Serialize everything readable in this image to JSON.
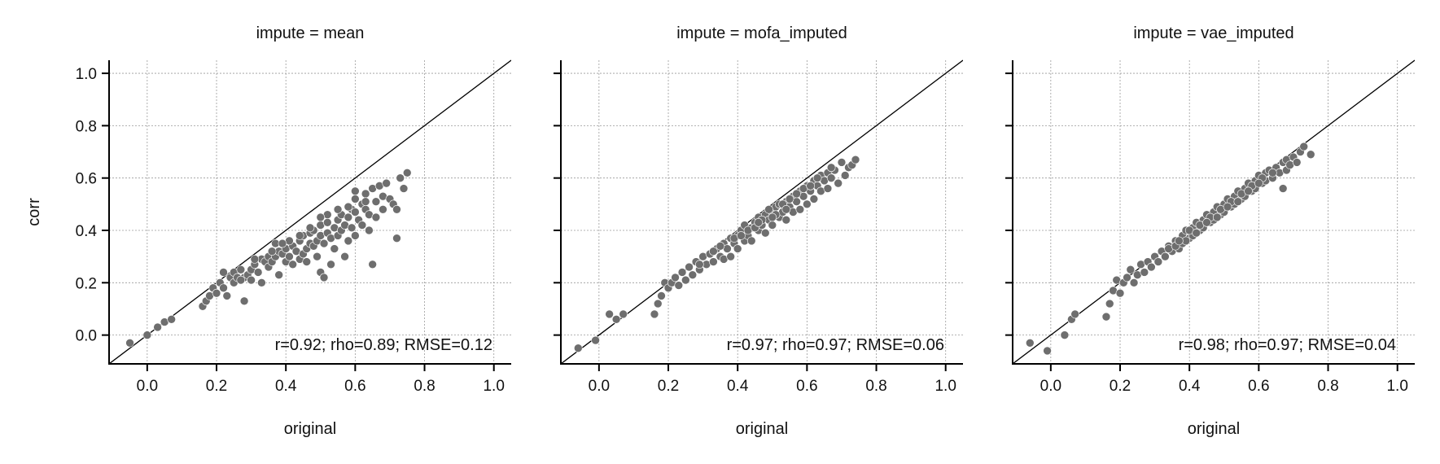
{
  "chart_data": [
    {
      "type": "scatter",
      "title": "impute = mean",
      "xlabel": "original",
      "ylabel": "corr",
      "xlim": [
        -0.11,
        1.05
      ],
      "ylim": [
        -0.11,
        1.05
      ],
      "xticks": [
        0.0,
        0.2,
        0.4,
        0.6,
        0.8,
        1.0
      ],
      "yticks": [
        0.0,
        0.2,
        0.4,
        0.6,
        0.8,
        1.0
      ],
      "grid": true,
      "reference_line": "y = x",
      "annotation": "r=0.92; rho=0.89; RMSE=0.12",
      "point_color": "#6e6e6e",
      "points": [
        [
          -0.05,
          -0.03
        ],
        [
          0.0,
          0.0
        ],
        [
          0.03,
          0.03
        ],
        [
          0.05,
          0.05
        ],
        [
          0.07,
          0.06
        ],
        [
          0.16,
          0.11
        ],
        [
          0.17,
          0.13
        ],
        [
          0.18,
          0.15
        ],
        [
          0.19,
          0.18
        ],
        [
          0.2,
          0.16
        ],
        [
          0.21,
          0.2
        ],
        [
          0.22,
          0.24
        ],
        [
          0.22,
          0.18
        ],
        [
          0.23,
          0.15
        ],
        [
          0.24,
          0.22
        ],
        [
          0.25,
          0.2
        ],
        [
          0.25,
          0.24
        ],
        [
          0.26,
          0.22
        ],
        [
          0.27,
          0.25
        ],
        [
          0.28,
          0.13
        ],
        [
          0.28,
          0.22
        ],
        [
          0.29,
          0.23
        ],
        [
          0.3,
          0.25
        ],
        [
          0.3,
          0.21
        ],
        [
          0.31,
          0.27
        ],
        [
          0.32,
          0.24
        ],
        [
          0.33,
          0.29
        ],
        [
          0.33,
          0.2
        ],
        [
          0.34,
          0.28
        ],
        [
          0.35,
          0.26
        ],
        [
          0.35,
          0.3
        ],
        [
          0.36,
          0.28
        ],
        [
          0.37,
          0.3
        ],
        [
          0.37,
          0.35
        ],
        [
          0.38,
          0.32
        ],
        [
          0.38,
          0.23
        ],
        [
          0.39,
          0.31
        ],
        [
          0.4,
          0.28
        ],
        [
          0.4,
          0.33
        ],
        [
          0.41,
          0.3
        ],
        [
          0.42,
          0.34
        ],
        [
          0.42,
          0.27
        ],
        [
          0.43,
          0.32
        ],
        [
          0.44,
          0.36
        ],
        [
          0.44,
          0.29
        ],
        [
          0.45,
          0.31
        ],
        [
          0.45,
          0.38
        ],
        [
          0.46,
          0.33
        ],
        [
          0.46,
          0.28
        ],
        [
          0.47,
          0.35
        ],
        [
          0.47,
          0.39
        ],
        [
          0.48,
          0.34
        ],
        [
          0.48,
          0.4
        ],
        [
          0.49,
          0.36
        ],
        [
          0.49,
          0.3
        ],
        [
          0.5,
          0.38
        ],
        [
          0.5,
          0.42
        ],
        [
          0.5,
          0.24
        ],
        [
          0.51,
          0.35
        ],
        [
          0.51,
          0.22
        ],
        [
          0.52,
          0.39
        ],
        [
          0.52,
          0.43
        ],
        [
          0.53,
          0.37
        ],
        [
          0.53,
          0.27
        ],
        [
          0.54,
          0.41
        ],
        [
          0.54,
          0.33
        ],
        [
          0.55,
          0.44
        ],
        [
          0.55,
          0.38
        ],
        [
          0.56,
          0.4
        ],
        [
          0.56,
          0.46
        ],
        [
          0.57,
          0.42
        ],
        [
          0.57,
          0.3
        ],
        [
          0.58,
          0.45
        ],
        [
          0.58,
          0.36
        ],
        [
          0.59,
          0.48
        ],
        [
          0.59,
          0.41
        ],
        [
          0.6,
          0.47
        ],
        [
          0.6,
          0.38
        ],
        [
          0.6,
          0.52
        ],
        [
          0.61,
          0.44
        ],
        [
          0.62,
          0.5
        ],
        [
          0.62,
          0.42
        ],
        [
          0.63,
          0.48
        ],
        [
          0.63,
          0.54
        ],
        [
          0.64,
          0.46
        ],
        [
          0.64,
          0.4
        ],
        [
          0.65,
          0.56
        ],
        [
          0.65,
          0.27
        ],
        [
          0.66,
          0.51
        ],
        [
          0.66,
          0.45
        ],
        [
          0.67,
          0.57
        ],
        [
          0.68,
          0.53
        ],
        [
          0.68,
          0.48
        ],
        [
          0.69,
          0.58
        ],
        [
          0.7,
          0.52
        ],
        [
          0.71,
          0.5
        ],
        [
          0.72,
          0.48
        ],
        [
          0.72,
          0.37
        ],
        [
          0.73,
          0.6
        ],
        [
          0.74,
          0.56
        ],
        [
          0.75,
          0.62
        ],
        [
          0.36,
          0.32
        ],
        [
          0.41,
          0.36
        ],
        [
          0.47,
          0.41
        ],
        [
          0.52,
          0.46
        ],
        [
          0.58,
          0.49
        ],
        [
          0.63,
          0.51
        ],
        [
          0.44,
          0.38
        ],
        [
          0.39,
          0.35
        ],
        [
          0.55,
          0.48
        ],
        [
          0.31,
          0.29
        ],
        [
          0.27,
          0.21
        ],
        [
          0.6,
          0.55
        ],
        [
          0.5,
          0.45
        ]
      ]
    },
    {
      "type": "scatter",
      "title": "impute = mofa_imputed",
      "xlabel": "original",
      "ylabel": "",
      "xlim": [
        -0.11,
        1.05
      ],
      "ylim": [
        -0.11,
        1.05
      ],
      "xticks": [
        0.0,
        0.2,
        0.4,
        0.6,
        0.8,
        1.0
      ],
      "yticks": [
        0.0,
        0.2,
        0.4,
        0.6,
        0.8,
        1.0
      ],
      "grid": true,
      "reference_line": "y = x",
      "annotation": "r=0.97; rho=0.97; RMSE=0.06",
      "point_color": "#6e6e6e",
      "points": [
        [
          -0.06,
          -0.05
        ],
        [
          -0.01,
          -0.02
        ],
        [
          0.03,
          0.08
        ],
        [
          0.05,
          0.06
        ],
        [
          0.07,
          0.08
        ],
        [
          0.16,
          0.08
        ],
        [
          0.17,
          0.12
        ],
        [
          0.18,
          0.15
        ],
        [
          0.19,
          0.2
        ],
        [
          0.2,
          0.18
        ],
        [
          0.21,
          0.2
        ],
        [
          0.22,
          0.22
        ],
        [
          0.23,
          0.19
        ],
        [
          0.24,
          0.24
        ],
        [
          0.25,
          0.21
        ],
        [
          0.26,
          0.26
        ],
        [
          0.27,
          0.23
        ],
        [
          0.28,
          0.28
        ],
        [
          0.29,
          0.25
        ],
        [
          0.3,
          0.3
        ],
        [
          0.31,
          0.27
        ],
        [
          0.32,
          0.31
        ],
        [
          0.33,
          0.28
        ],
        [
          0.34,
          0.33
        ],
        [
          0.35,
          0.3
        ],
        [
          0.36,
          0.35
        ],
        [
          0.36,
          0.29
        ],
        [
          0.37,
          0.33
        ],
        [
          0.38,
          0.37
        ],
        [
          0.38,
          0.3
        ],
        [
          0.39,
          0.35
        ],
        [
          0.4,
          0.38
        ],
        [
          0.4,
          0.33
        ],
        [
          0.41,
          0.4
        ],
        [
          0.42,
          0.36
        ],
        [
          0.42,
          0.42
        ],
        [
          0.43,
          0.38
        ],
        [
          0.44,
          0.41
        ],
        [
          0.44,
          0.36
        ],
        [
          0.45,
          0.43
        ],
        [
          0.46,
          0.4
        ],
        [
          0.46,
          0.45
        ],
        [
          0.47,
          0.42
        ],
        [
          0.48,
          0.46
        ],
        [
          0.48,
          0.39
        ],
        [
          0.49,
          0.44
        ],
        [
          0.5,
          0.47
        ],
        [
          0.5,
          0.42
        ],
        [
          0.51,
          0.49
        ],
        [
          0.52,
          0.45
        ],
        [
          0.52,
          0.5
        ],
        [
          0.53,
          0.47
        ],
        [
          0.54,
          0.51
        ],
        [
          0.54,
          0.44
        ],
        [
          0.55,
          0.49
        ],
        [
          0.56,
          0.53
        ],
        [
          0.56,
          0.47
        ],
        [
          0.57,
          0.51
        ],
        [
          0.58,
          0.55
        ],
        [
          0.58,
          0.48
        ],
        [
          0.59,
          0.53
        ],
        [
          0.6,
          0.57
        ],
        [
          0.6,
          0.5
        ],
        [
          0.61,
          0.55
        ],
        [
          0.62,
          0.59
        ],
        [
          0.62,
          0.52
        ],
        [
          0.63,
          0.57
        ],
        [
          0.64,
          0.61
        ],
        [
          0.64,
          0.55
        ],
        [
          0.65,
          0.59
        ],
        [
          0.66,
          0.62
        ],
        [
          0.66,
          0.56
        ],
        [
          0.67,
          0.6
        ],
        [
          0.68,
          0.63
        ],
        [
          0.69,
          0.58
        ],
        [
          0.7,
          0.66
        ],
        [
          0.71,
          0.61
        ],
        [
          0.72,
          0.64
        ],
        [
          0.73,
          0.65
        ],
        [
          0.74,
          0.67
        ],
        [
          0.43,
          0.4
        ],
        [
          0.47,
          0.44
        ],
        [
          0.51,
          0.46
        ],
        [
          0.55,
          0.52
        ],
        [
          0.59,
          0.56
        ],
        [
          0.35,
          0.34
        ],
        [
          0.39,
          0.37
        ],
        [
          0.41,
          0.38
        ],
        [
          0.45,
          0.41
        ],
        [
          0.53,
          0.5
        ],
        [
          0.57,
          0.54
        ],
        [
          0.61,
          0.57
        ],
        [
          0.33,
          0.32
        ],
        [
          0.29,
          0.27
        ],
        [
          0.49,
          0.48
        ],
        [
          0.63,
          0.6
        ],
        [
          0.67,
          0.64
        ],
        [
          0.46,
          0.43
        ],
        [
          0.5,
          0.45
        ],
        [
          0.54,
          0.48
        ]
      ]
    },
    {
      "type": "scatter",
      "title": "impute = vae_imputed",
      "xlabel": "original",
      "ylabel": "",
      "xlim": [
        -0.11,
        1.05
      ],
      "ylim": [
        -0.11,
        1.05
      ],
      "xticks": [
        0.0,
        0.2,
        0.4,
        0.6,
        0.8,
        1.0
      ],
      "yticks": [
        0.0,
        0.2,
        0.4,
        0.6,
        0.8,
        1.0
      ],
      "grid": true,
      "reference_line": "y = x",
      "annotation": "r=0.98; rho=0.97; RMSE=0.04",
      "point_color": "#6e6e6e",
      "points": [
        [
          -0.06,
          -0.03
        ],
        [
          -0.01,
          -0.06
        ],
        [
          0.04,
          0.0
        ],
        [
          0.06,
          0.06
        ],
        [
          0.07,
          0.08
        ],
        [
          0.16,
          0.07
        ],
        [
          0.17,
          0.12
        ],
        [
          0.18,
          0.17
        ],
        [
          0.19,
          0.21
        ],
        [
          0.2,
          0.16
        ],
        [
          0.21,
          0.2
        ],
        [
          0.22,
          0.22
        ],
        [
          0.23,
          0.25
        ],
        [
          0.24,
          0.2
        ],
        [
          0.25,
          0.23
        ],
        [
          0.26,
          0.27
        ],
        [
          0.27,
          0.24
        ],
        [
          0.28,
          0.28
        ],
        [
          0.29,
          0.26
        ],
        [
          0.3,
          0.3
        ],
        [
          0.31,
          0.28
        ],
        [
          0.32,
          0.32
        ],
        [
          0.33,
          0.3
        ],
        [
          0.34,
          0.34
        ],
        [
          0.35,
          0.32
        ],
        [
          0.36,
          0.36
        ],
        [
          0.37,
          0.33
        ],
        [
          0.38,
          0.38
        ],
        [
          0.38,
          0.35
        ],
        [
          0.39,
          0.4
        ],
        [
          0.4,
          0.37
        ],
        [
          0.41,
          0.41
        ],
        [
          0.41,
          0.38
        ],
        [
          0.42,
          0.43
        ],
        [
          0.43,
          0.4
        ],
        [
          0.44,
          0.44
        ],
        [
          0.44,
          0.41
        ],
        [
          0.45,
          0.46
        ],
        [
          0.46,
          0.43
        ],
        [
          0.47,
          0.47
        ],
        [
          0.47,
          0.44
        ],
        [
          0.48,
          0.49
        ],
        [
          0.49,
          0.46
        ],
        [
          0.5,
          0.5
        ],
        [
          0.5,
          0.47
        ],
        [
          0.51,
          0.52
        ],
        [
          0.52,
          0.49
        ],
        [
          0.53,
          0.53
        ],
        [
          0.53,
          0.5
        ],
        [
          0.54,
          0.55
        ],
        [
          0.55,
          0.52
        ],
        [
          0.56,
          0.56
        ],
        [
          0.56,
          0.53
        ],
        [
          0.57,
          0.58
        ],
        [
          0.58,
          0.55
        ],
        [
          0.59,
          0.59
        ],
        [
          0.59,
          0.56
        ],
        [
          0.6,
          0.61
        ],
        [
          0.61,
          0.58
        ],
        [
          0.62,
          0.62
        ],
        [
          0.62,
          0.59
        ],
        [
          0.63,
          0.63
        ],
        [
          0.64,
          0.6
        ],
        [
          0.65,
          0.64
        ],
        [
          0.66,
          0.62
        ],
        [
          0.67,
          0.66
        ],
        [
          0.68,
          0.63
        ],
        [
          0.68,
          0.67
        ],
        [
          0.69,
          0.65
        ],
        [
          0.7,
          0.68
        ],
        [
          0.71,
          0.66
        ],
        [
          0.72,
          0.7
        ],
        [
          0.73,
          0.72
        ],
        [
          0.75,
          0.69
        ],
        [
          0.67,
          0.56
        ],
        [
          0.39,
          0.36
        ],
        [
          0.43,
          0.42
        ],
        [
          0.46,
          0.45
        ],
        [
          0.49,
          0.48
        ],
        [
          0.52,
          0.51
        ],
        [
          0.55,
          0.54
        ],
        [
          0.58,
          0.57
        ],
        [
          0.61,
          0.6
        ],
        [
          0.64,
          0.62
        ],
        [
          0.34,
          0.33
        ],
        [
          0.36,
          0.34
        ],
        [
          0.4,
          0.4
        ],
        [
          0.45,
          0.43
        ],
        [
          0.51,
          0.49
        ],
        [
          0.57,
          0.55
        ],
        [
          0.48,
          0.45
        ],
        [
          0.54,
          0.51
        ],
        [
          0.6,
          0.58
        ],
        [
          0.42,
          0.39
        ],
        [
          0.37,
          0.36
        ]
      ]
    }
  ]
}
